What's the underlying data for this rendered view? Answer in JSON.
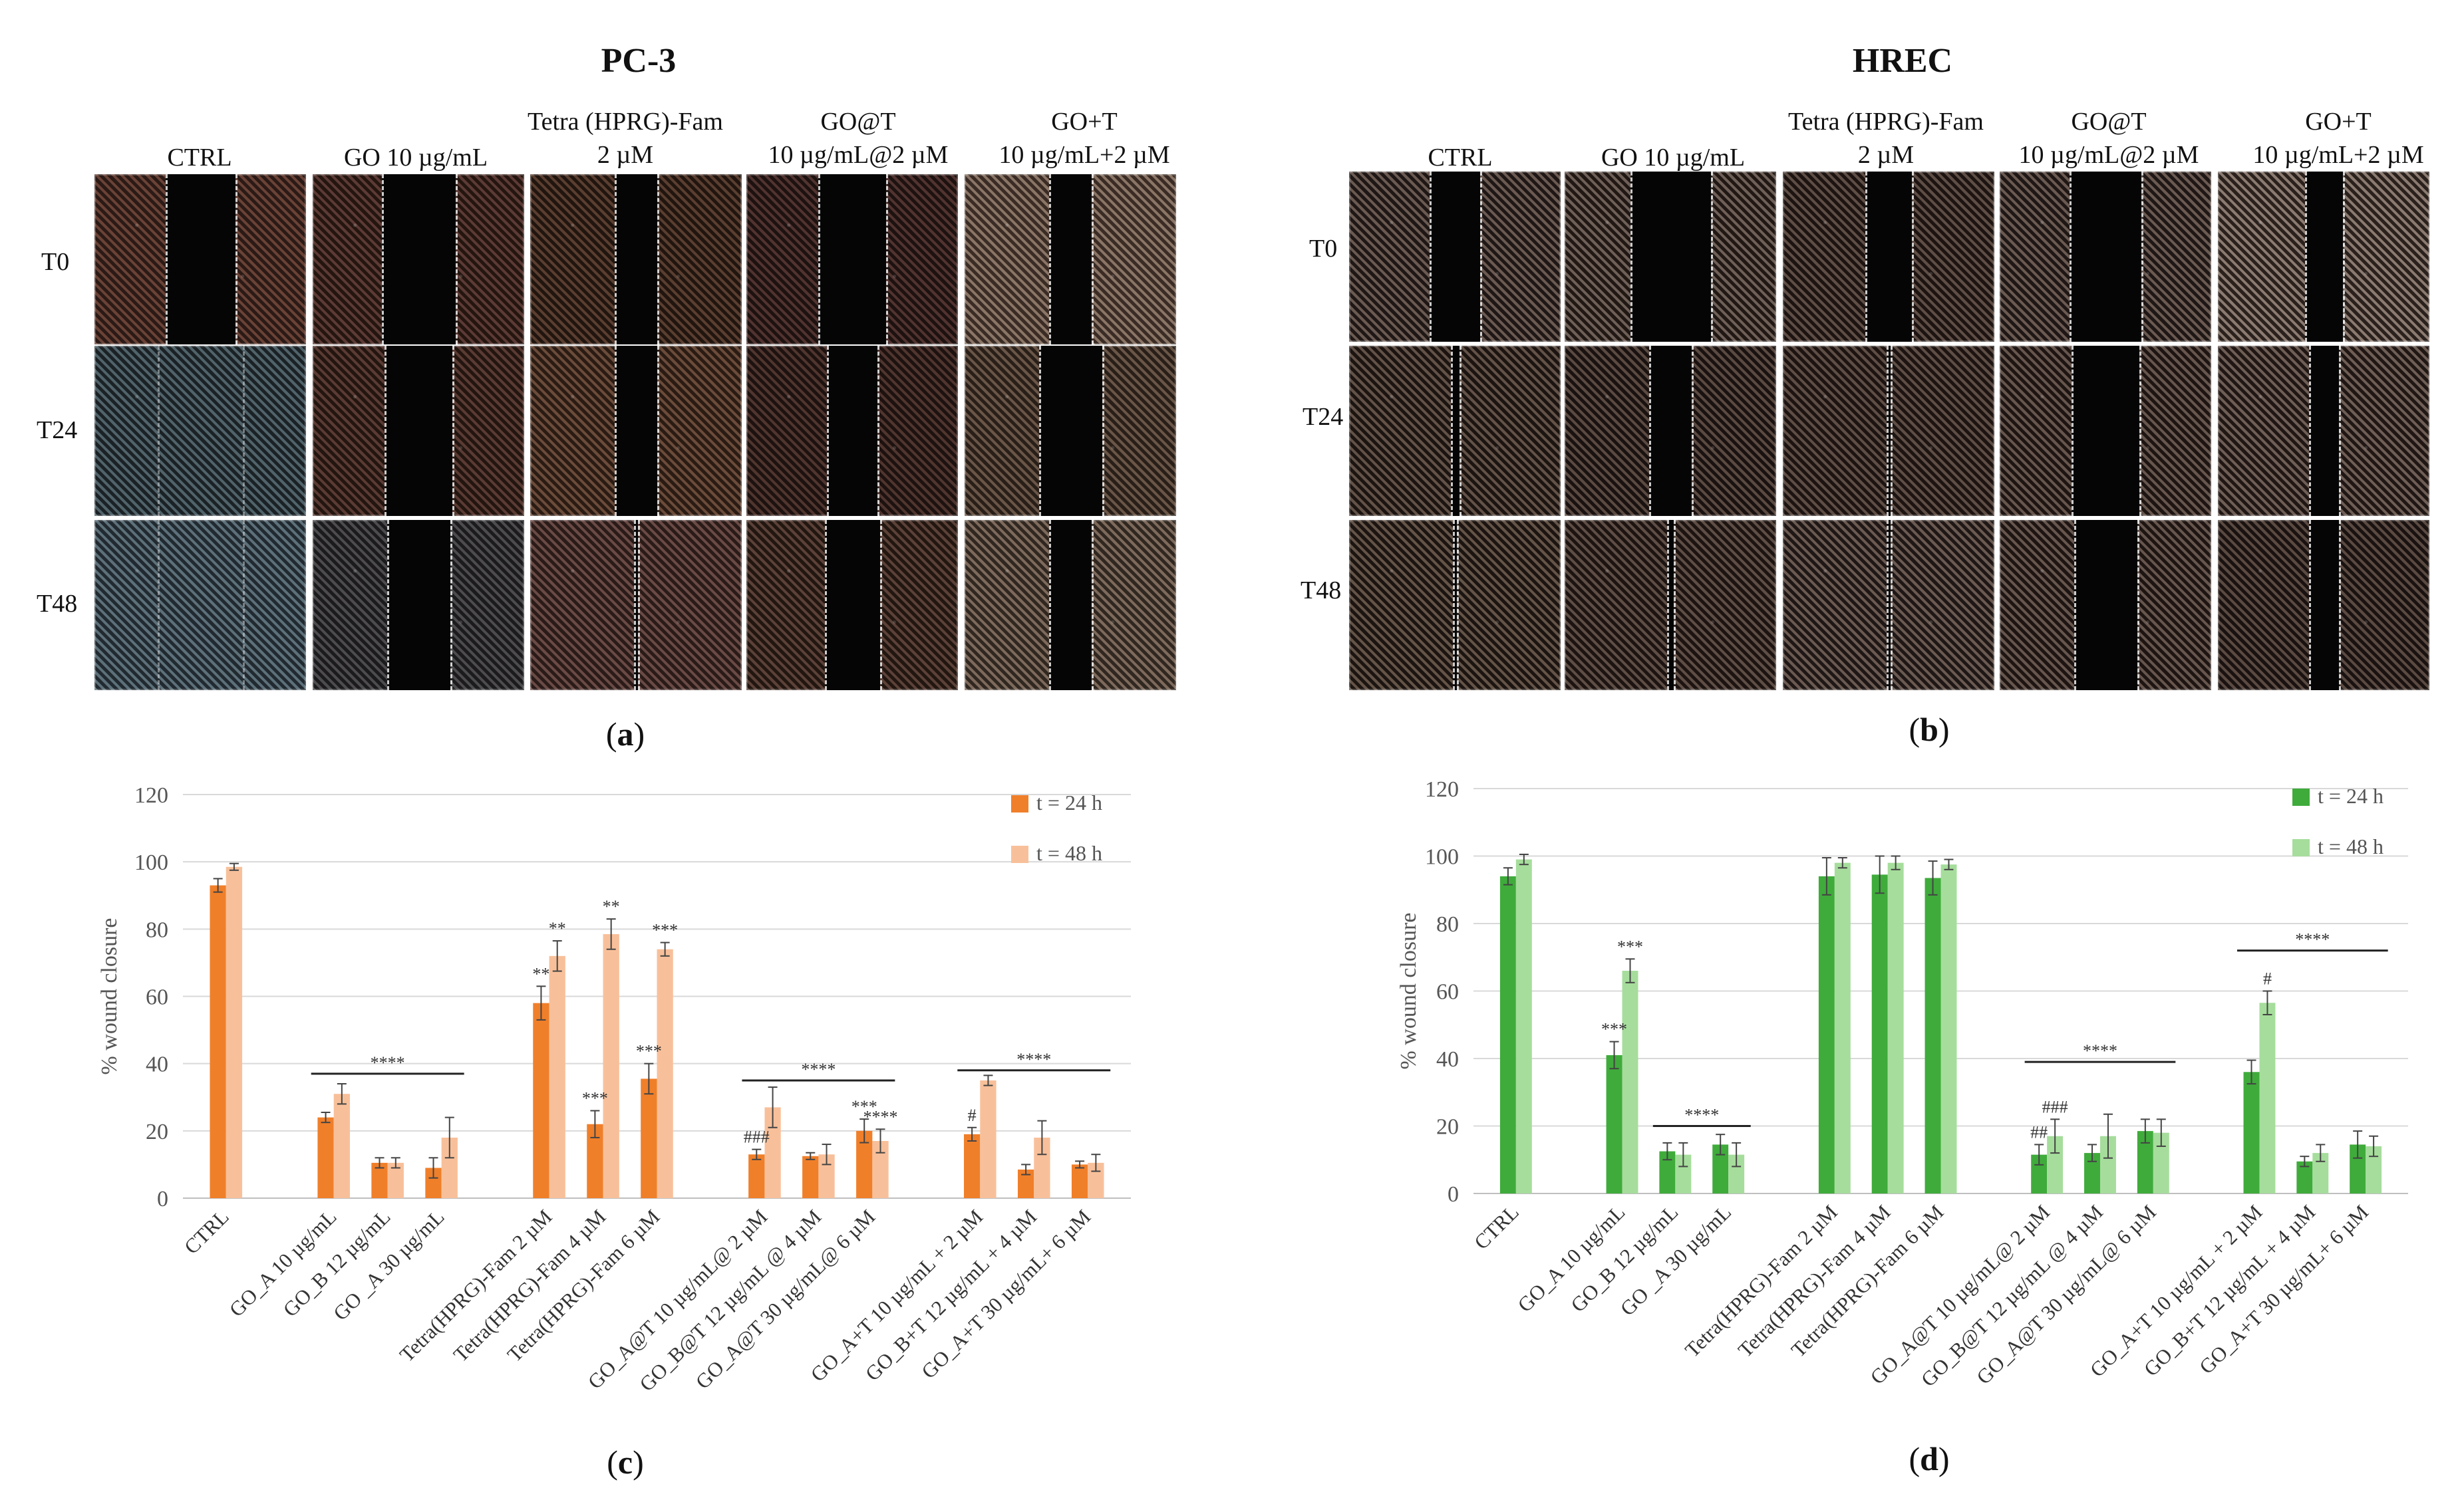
{
  "figure": {
    "panel_a": {
      "label_open": "(",
      "label_letter": "a",
      "label_close": ")",
      "title": "PC-3",
      "columns": [
        {
          "line1": "",
          "line2": "CTRL"
        },
        {
          "line1": "",
          "line2": "GO 10 µg/mL"
        },
        {
          "line1": "Tetra (HPRG)-Fam",
          "line2": "2 µM"
        },
        {
          "line1": "GO@T",
          "line2": "10 µg/mL@2 µM"
        },
        {
          "line1": "GO+T",
          "line2": "10 µg/mL+2 µM"
        }
      ],
      "rows": [
        "T0",
        "T24",
        "T48"
      ]
    },
    "panel_b": {
      "label_open": "(",
      "label_letter": "b",
      "label_close": ")",
      "title": "HREC",
      "columns": [
        {
          "line1": "",
          "line2": "CTRL"
        },
        {
          "line1": "",
          "line2": "GO 10 µg/mL"
        },
        {
          "line1": "Tetra (HPRG)-Fam",
          "line2": "2 µM"
        },
        {
          "line1": "GO@T",
          "line2": "10 µg/mL@2 µM"
        },
        {
          "line1": "GO+T",
          "line2": "10 µg/mL+2 µM"
        }
      ],
      "rows": [
        "T0",
        "T24",
        "T48"
      ]
    },
    "panel_c": {
      "label_open": "(",
      "label_letter": "c",
      "label_close": ")"
    },
    "panel_d": {
      "label_open": "(",
      "label_letter": "d",
      "label_close": ")"
    }
  },
  "chart_data": [
    {
      "type": "bar",
      "panel": "c",
      "ylabel": "% wound closure",
      "ylim": [
        0,
        120
      ],
      "yticks": [
        0,
        20,
        40,
        60,
        80,
        100,
        120
      ],
      "grid": true,
      "legend_position": "top-right",
      "categories": [
        "CTRL",
        "GO_A 10 µg/mL",
        "GO_B 12 µg/mL",
        "GO _A 30 µg/mL",
        "Tetra(HPRG)-Fam 2 µM",
        "Tetra(HPRG)-Fam 4 µM",
        "Tetra(HPRG)-Fam 6 µM",
        "GO_A@T 10 µg/mL@ 2 µM",
        "GO_B@T 12 µg/mL @ 4 µM",
        "GO_A@T 30 µg/mL@ 6 µM",
        "GO_A+T 10 µg/mL + 2 µM",
        "GO_B+T 12 µg/mL + 4 µM",
        "GO_A+T 30 µg/mL+ 6 µM"
      ],
      "groups": [
        [
          0
        ],
        [
          1,
          2,
          3
        ],
        [
          4,
          5,
          6
        ],
        [
          7,
          8,
          9
        ],
        [
          10,
          11,
          12
        ]
      ],
      "series": [
        {
          "name": "t = 24 h",
          "color": "#f07f2a",
          "values": [
            93,
            24,
            10.5,
            9,
            58,
            22,
            35.5,
            13,
            12.5,
            20,
            19,
            8.5,
            10
          ],
          "errors": [
            2,
            1.5,
            1.5,
            3,
            5,
            4,
            4.5,
            1.5,
            1,
            3.5,
            2,
            1.5,
            1
          ]
        },
        {
          "name": "t = 48 h",
          "color": "#f8c09a",
          "values": [
            98.5,
            31,
            10.5,
            18,
            72,
            78.5,
            74,
            27,
            13,
            17,
            35,
            18,
            10.5
          ],
          "errors": [
            1,
            3,
            1.5,
            6,
            4.5,
            4.5,
            2,
            6,
            3,
            3.5,
            1.5,
            5,
            2.5
          ]
        }
      ],
      "annotations": [
        {
          "label": "****",
          "kind": "line",
          "from": 1,
          "to": 3,
          "y": 37
        },
        {
          "label": "****",
          "kind": "line",
          "from": 7,
          "to": 9,
          "y": 35
        },
        {
          "label": "****",
          "kind": "line",
          "from": 10,
          "to": 12,
          "y": 38
        },
        {
          "label": "**",
          "kind": "mark",
          "cat": 4,
          "series": 0
        },
        {
          "label": "**",
          "kind": "mark",
          "cat": 4,
          "series": 1
        },
        {
          "label": "***",
          "kind": "mark",
          "cat": 5,
          "series": 0
        },
        {
          "label": "**",
          "kind": "mark",
          "cat": 5,
          "series": 1
        },
        {
          "label": "***",
          "kind": "mark",
          "cat": 6,
          "series": 0
        },
        {
          "label": "***",
          "kind": "mark",
          "cat": 6,
          "series": 1
        },
        {
          "label": "###",
          "kind": "mark",
          "cat": 7,
          "series": 0
        },
        {
          "label": "***",
          "kind": "mark",
          "cat": 9,
          "series": 0
        },
        {
          "label": "****",
          "kind": "mark",
          "cat": 9,
          "series": 1
        },
        {
          "label": "#",
          "kind": "mark",
          "cat": 10,
          "series": 0
        }
      ]
    },
    {
      "type": "bar",
      "panel": "d",
      "ylabel": "% wound closure",
      "ylim": [
        0,
        120
      ],
      "yticks": [
        0,
        20,
        40,
        60,
        80,
        100,
        120
      ],
      "grid": true,
      "legend_position": "top-right",
      "categories": [
        "CTRL",
        "GO_A 10 µg/mL",
        "GO_B 12 µg/mL",
        "GO _A 30 µg/mL",
        "Tetra(HPRG)-Fam 2 µM",
        "Tetra(HPRG)-Fam 4 µM",
        "Tetra(HPRG)-Fam 6 µM",
        "GO_A@T 10 µg/mL@ 2 µM",
        "GO_B@T 12 µg/mL @ 4 µM",
        "GO_A@T 30 µg/mL@ 6 µM",
        "GO_A+T 10 µg/mL + 2 µM",
        "GO_B+T 12 µg/mL + 4 µM",
        "GO_A+T 30 µg/mL+ 6 µM"
      ],
      "groups": [
        [
          0
        ],
        [
          1,
          2,
          3
        ],
        [
          4,
          5,
          6
        ],
        [
          7,
          8,
          9
        ],
        [
          10,
          11,
          12
        ]
      ],
      "series": [
        {
          "name": "t = 24 h",
          "color": "#3fab3b",
          "values": [
            94,
            41,
            12.5,
            14.5,
            94,
            94.5,
            93.5,
            11.5,
            12,
            18.5,
            36,
            9.5,
            14.5
          ],
          "errors": [
            2.5,
            4,
            2.5,
            3,
            5.5,
            5.5,
            5,
            3,
            2.5,
            3.5,
            3.5,
            1.5,
            4
          ]
        },
        {
          "name": "t = 48 h",
          "color": "#a6dd9c",
          "values": [
            99,
            66,
            11.5,
            11.5,
            98,
            98,
            97.5,
            17,
            17,
            18,
            56.5,
            12,
            14
          ],
          "errors": [
            1.5,
            3.5,
            3.5,
            3.5,
            1.5,
            2,
            1.5,
            5,
            6.5,
            4,
            3.5,
            2.5,
            3
          ]
        }
      ],
      "annotations": [
        {
          "label": "****",
          "kind": "line",
          "from": 2,
          "to": 3,
          "y": 20
        },
        {
          "label": "****",
          "kind": "line",
          "from": 7,
          "to": 9,
          "y": 39
        },
        {
          "label": "****",
          "kind": "line",
          "from": 10,
          "to": 12,
          "y": 72
        },
        {
          "label": "***",
          "kind": "mark",
          "cat": 1,
          "series": 0
        },
        {
          "label": "***",
          "kind": "mark",
          "cat": 1,
          "series": 1
        },
        {
          "label": "##",
          "kind": "mark",
          "cat": 7,
          "series": 0
        },
        {
          "label": "###",
          "kind": "mark",
          "cat": 7,
          "series": 1
        },
        {
          "label": "#",
          "kind": "mark",
          "cat": 10,
          "series": 1
        }
      ]
    }
  ]
}
